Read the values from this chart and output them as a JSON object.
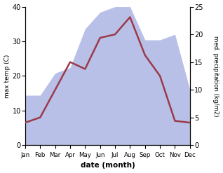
{
  "months": [
    "Jan",
    "Feb",
    "Mar",
    "Apr",
    "May",
    "Jun",
    "Jul",
    "Aug",
    "Sep",
    "Oct",
    "Nov",
    "Dec"
  ],
  "temp": [
    6.5,
    8.0,
    16.0,
    24.0,
    22.0,
    31.0,
    32.0,
    37.0,
    26.0,
    20.0,
    7.0,
    6.5
  ],
  "precip": [
    9.0,
    9.0,
    13.0,
    14.0,
    21.0,
    24.0,
    25.0,
    25.0,
    19.0,
    19.0,
    20.0,
    10.0
  ],
  "temp_color": "#9b3a4a",
  "precip_color_fill": "#b8c0e8",
  "temp_ylim": [
    0,
    40
  ],
  "precip_ylim": [
    0,
    25
  ],
  "temp_yticks": [
    0,
    10,
    20,
    30,
    40
  ],
  "precip_yticks": [
    0,
    5,
    10,
    15,
    20,
    25
  ],
  "xlabel": "date (month)",
  "ylabel_left": "max temp (C)",
  "ylabel_right": "med. precipitation (kg/m2)",
  "temp_lw": 1.8,
  "bg_color": "#ffffff"
}
